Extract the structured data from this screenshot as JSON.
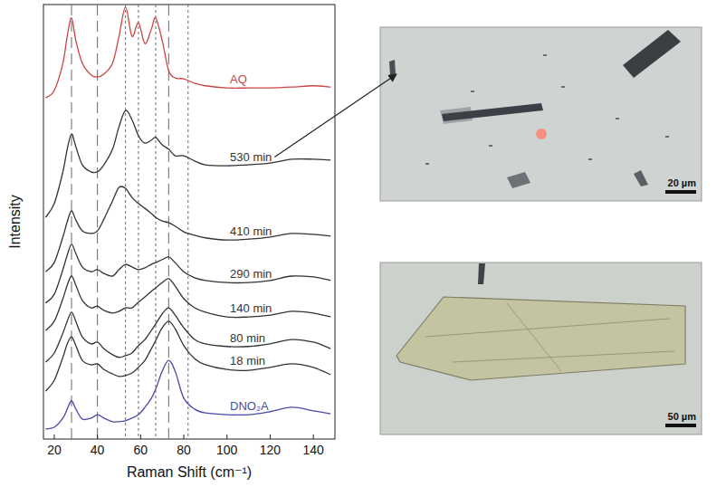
{
  "chart_data": {
    "type": "line",
    "x_label": "Raman Shift (cm⁻¹)",
    "y_label": "Intensity",
    "xlim": [
      15,
      150
    ],
    "xticks": [
      20,
      40,
      60,
      80,
      100,
      120,
      140
    ],
    "ylim": [
      0,
      100
    ],
    "tick_labels": "x",
    "grid": false,
    "x": [
      16,
      20,
      24,
      26,
      28,
      30,
      33,
      37,
      40,
      43,
      47,
      50,
      53,
      56,
      59,
      62,
      65,
      67,
      70,
      73,
      76,
      80,
      85,
      90,
      100,
      110,
      120,
      130,
      140,
      148
    ],
    "series": [
      {
        "name": "AQ",
        "color": "#cc4444",
        "values": [
          78.5,
          80.2,
          86.5,
          92.7,
          96.9,
          91.7,
          86.5,
          83.8,
          83.3,
          84.0,
          86.5,
          92.7,
          99.4,
          92.7,
          95.8,
          91.0,
          94.4,
          96.9,
          91.7,
          84.8,
          83.1,
          82.9,
          81.9,
          81.3,
          80.8,
          80.8,
          80.8,
          81.0,
          81.3,
          81.0
        ]
      },
      {
        "name": "530 min",
        "color": "#333333",
        "values": [
          51.0,
          54.2,
          61.5,
          66.7,
          70.2,
          67.3,
          63.1,
          61.5,
          61.5,
          63.1,
          66.7,
          71.9,
          75.6,
          73.5,
          69.8,
          68.1,
          68.8,
          69.4,
          67.7,
          66.7,
          65.2,
          65.2,
          64.0,
          63.1,
          62.9,
          63.1,
          63.5,
          64.4,
          64.4,
          64.2
        ]
      },
      {
        "name": "410 min",
        "color": "#333333",
        "values": [
          38.5,
          40.6,
          46.5,
          50.0,
          52.5,
          50.4,
          47.9,
          47.3,
          47.9,
          50.6,
          54.8,
          57.9,
          57.7,
          55.6,
          54.2,
          53.1,
          51.9,
          51.0,
          50.2,
          49.8,
          49.0,
          47.7,
          46.9,
          46.3,
          45.8,
          46.0,
          46.5,
          47.3,
          47.1,
          46.7
        ]
      },
      {
        "name": "290 min",
        "color": "#333333",
        "values": [
          31.3,
          33.3,
          39.0,
          42.3,
          44.8,
          42.7,
          39.6,
          38.5,
          39.0,
          38.1,
          37.5,
          39.0,
          40.2,
          39.6,
          39.0,
          39.4,
          40.2,
          40.6,
          41.3,
          41.9,
          40.6,
          38.5,
          37.1,
          36.5,
          36.0,
          36.0,
          36.5,
          37.5,
          37.3,
          36.5
        ]
      },
      {
        "name": "140 min",
        "color": "#333333",
        "values": [
          25.0,
          27.1,
          32.3,
          35.4,
          37.5,
          35.4,
          31.9,
          30.2,
          30.6,
          29.6,
          29.0,
          29.4,
          30.2,
          30.2,
          31.5,
          32.7,
          34.0,
          34.8,
          36.0,
          36.9,
          35.2,
          32.3,
          30.2,
          29.2,
          28.1,
          28.1,
          28.5,
          29.4,
          29.0,
          28.1
        ]
      },
      {
        "name": "80 min",
        "color": "#333333",
        "values": [
          17.7,
          19.8,
          24.4,
          27.1,
          29.2,
          27.1,
          23.5,
          21.9,
          22.3,
          20.8,
          19.4,
          18.8,
          19.2,
          19.8,
          21.5,
          22.9,
          25.0,
          26.5,
          28.8,
          30.2,
          28.5,
          25.6,
          22.9,
          21.9,
          21.3,
          21.3,
          21.9,
          22.9,
          22.3,
          20.8
        ]
      },
      {
        "name": "18 min",
        "color": "#333333",
        "values": [
          11.0,
          13.5,
          18.8,
          21.9,
          23.5,
          21.5,
          18.1,
          17.1,
          17.3,
          16.0,
          15.0,
          14.4,
          14.6,
          15.2,
          16.5,
          18.1,
          20.8,
          22.7,
          25.6,
          27.1,
          25.4,
          21.5,
          18.5,
          17.1,
          16.0,
          15.8,
          16.5,
          17.3,
          16.5,
          14.8
        ]
      },
      {
        "name": "DNO₂A",
        "color": "#4a4aa8",
        "values": [
          2.3,
          2.7,
          4.8,
          6.9,
          8.8,
          6.9,
          4.6,
          4.8,
          5.6,
          4.8,
          4.0,
          4.0,
          4.2,
          4.8,
          5.6,
          7.3,
          9.4,
          11.5,
          15.6,
          18.1,
          15.6,
          9.4,
          6.9,
          6.0,
          5.6,
          5.6,
          6.3,
          7.3,
          6.5,
          5.8
        ]
      }
    ],
    "reference_lines": [
      {
        "x": 28,
        "line_style": "dashed"
      },
      {
        "x": 40,
        "line_style": "dashed"
      },
      {
        "x": 53,
        "line_style": "dotted"
      },
      {
        "x": 59,
        "line_style": "dotted"
      },
      {
        "x": 67,
        "line_style": "dotted"
      },
      {
        "x": 73,
        "line_style": "dashed"
      },
      {
        "x": 82,
        "line_style": "dotted"
      }
    ]
  },
  "micrographs": [
    {
      "scale_bar": "20 µm"
    },
    {
      "scale_bar": "50 µm"
    }
  ]
}
